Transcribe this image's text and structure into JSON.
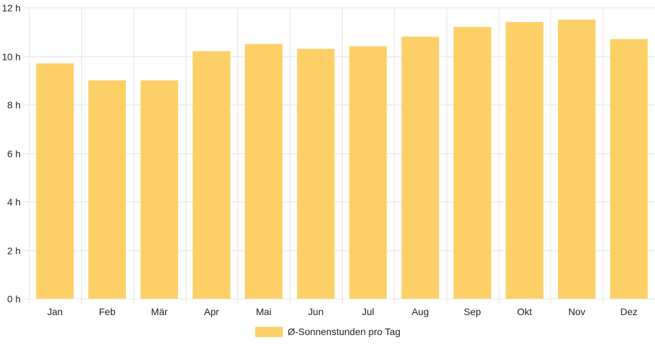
{
  "chart_data": {
    "type": "bar",
    "categories": [
      "Jan",
      "Feb",
      "Mär",
      "Apr",
      "Mai",
      "Jun",
      "Jul",
      "Aug",
      "Sep",
      "Okt",
      "Nov",
      "Dez"
    ],
    "series": [
      {
        "name": "Ø-Sonnenstunden pro Tag",
        "values": [
          9.7,
          9.0,
          9.0,
          10.2,
          10.5,
          10.3,
          10.4,
          10.8,
          11.2,
          11.4,
          11.5,
          10.7
        ],
        "color": "#fdd067"
      }
    ],
    "title": "",
    "xlabel": "",
    "ylabel": "",
    "ylim": [
      0,
      12
    ],
    "yticks": [
      0,
      2,
      4,
      6,
      8,
      10,
      12
    ],
    "ytick_suffix": " h",
    "ytick_labels": [
      "0 h",
      "2 h",
      "4 h",
      "6 h",
      "8 h",
      "10 h",
      "12 h"
    ],
    "grid": true,
    "legend_position": "bottom"
  }
}
